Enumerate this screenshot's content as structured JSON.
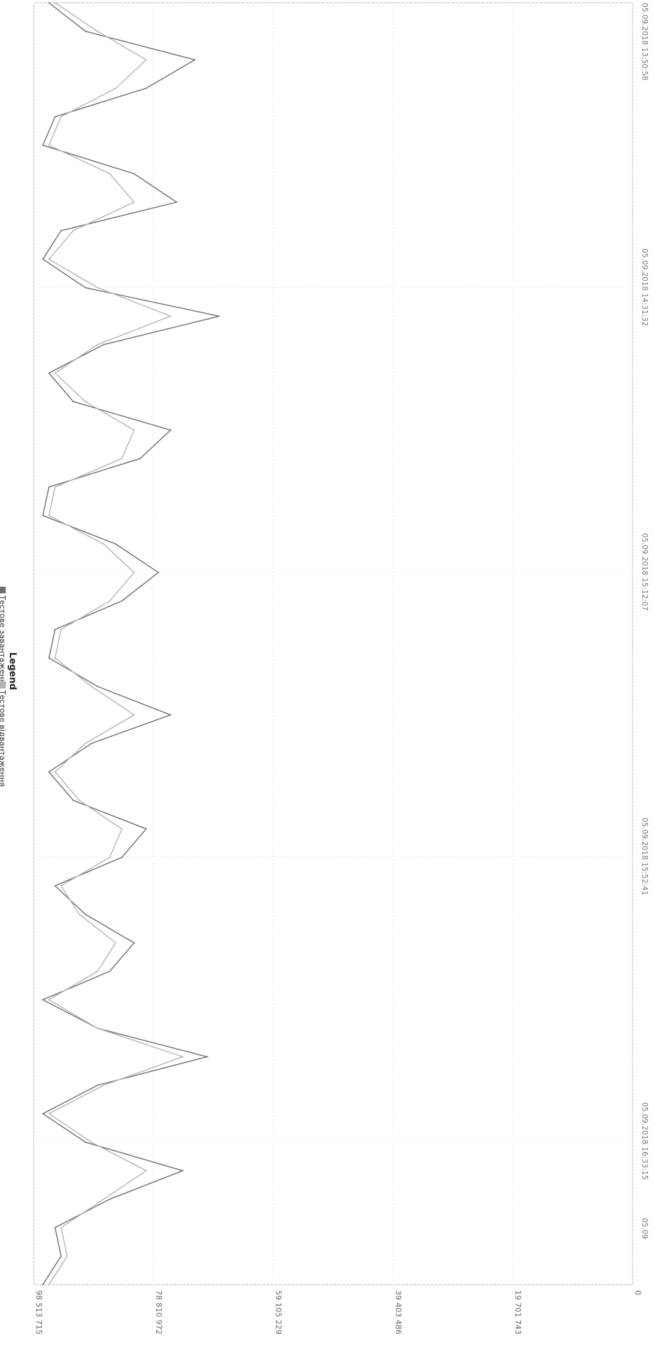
{
  "chart_data": {
    "type": "line",
    "title": "",
    "legend": {
      "title": "Legend",
      "placement": "top",
      "items": [
        "Тестове завантаження",
        "Тестове відвантаження"
      ]
    },
    "orientation": "rotated-90-clockwise",
    "xlabel": "",
    "ylabel": "",
    "grid": true,
    "ylim": [
      0,
      98513715
    ],
    "y_ticks": [
      0,
      19701743,
      39403486,
      59105229,
      78810972,
      98513715
    ],
    "y_tick_labels": [
      "0",
      "19 701 743",
      "39 403 486",
      "59 105 229",
      "78 810 972",
      "98 513 715"
    ],
    "x_tick_labels": [
      "05.09.2018 13:50:58",
      "05.09.2018 14:31:32",
      "05.09.2018 15:12:07",
      "05.09.2018 15:52:41",
      "05.09.2018 16:33:15",
      "05.09"
    ],
    "x_tick_fracs": [
      0.0,
      0.222,
      0.444,
      0.666,
      0.888,
      1.0
    ],
    "x": [
      "13:51",
      "13:56",
      "14:00",
      "14:04",
      "14:08",
      "14:13",
      "14:17",
      "14:21",
      "14:26",
      "14:30",
      "14:34",
      "14:38",
      "14:43",
      "14:47",
      "14:51",
      "14:56",
      "15:00",
      "15:04",
      "15:08",
      "15:13",
      "15:17",
      "15:21",
      "15:26",
      "15:30",
      "15:34",
      "15:38",
      "15:43",
      "15:47",
      "15:51",
      "15:56",
      "16:00",
      "16:04",
      "16:08",
      "16:13",
      "16:17",
      "16:21",
      "16:26",
      "16:30",
      "16:34",
      "16:38",
      "16:43",
      "16:47",
      "16:51",
      "16:56",
      "17:00",
      "17:04"
    ],
    "series": [
      {
        "name": "Тестове завантаження",
        "color": "#6e6e6e",
        "values": [
          96000000,
          90000000,
          72000000,
          80000000,
          95000000,
          97000000,
          82000000,
          75000000,
          94000000,
          97000000,
          90000000,
          68000000,
          87000000,
          96000000,
          92000000,
          76000000,
          81000000,
          96000000,
          97000000,
          85000000,
          78000000,
          84000000,
          95000000,
          96000000,
          88000000,
          76000000,
          89000000,
          96000000,
          92000000,
          80000000,
          84000000,
          95000000,
          90000000,
          82000000,
          86000000,
          97000000,
          88000000,
          70000000,
          88000000,
          97000000,
          90000000,
          74000000,
          86000000,
          95000000,
          94000000,
          97000000
        ]
      },
      {
        "name": "Тестове відвантаження",
        "color": "#b4b4b4",
        "values": [
          95000000,
          88000000,
          80000000,
          85000000,
          94000000,
          96000000,
          86000000,
          82000000,
          92000000,
          96000000,
          88000000,
          76000000,
          88000000,
          95000000,
          90000000,
          82000000,
          84000000,
          95000000,
          96000000,
          87000000,
          82000000,
          86000000,
          94000000,
          95000000,
          89000000,
          82000000,
          90000000,
          95000000,
          91000000,
          84000000,
          86000000,
          94000000,
          91000000,
          85000000,
          88000000,
          96000000,
          88000000,
          74000000,
          87000000,
          96000000,
          89000000,
          80000000,
          87000000,
          94000000,
          93000000,
          96000000
        ]
      }
    ]
  }
}
